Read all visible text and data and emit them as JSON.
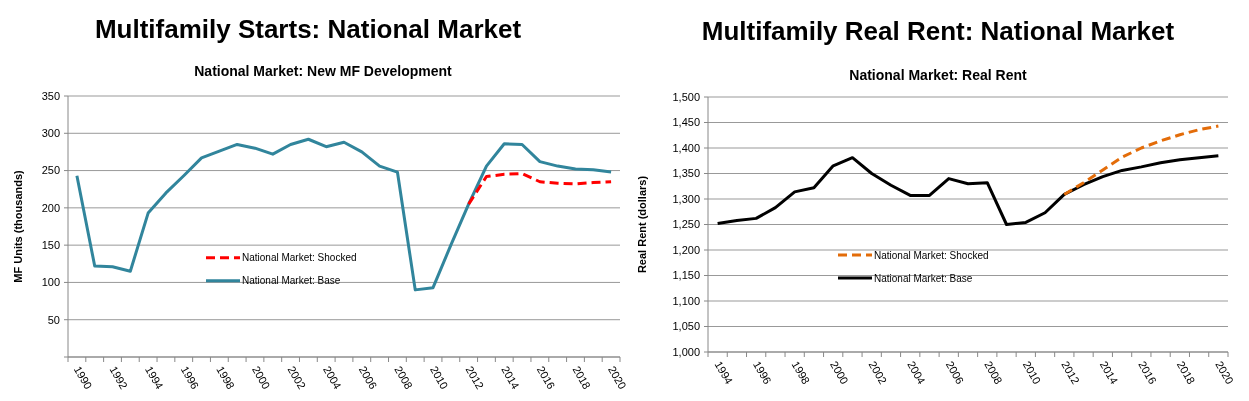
{
  "chart_data": [
    {
      "type": "line",
      "title": "Multifamily Starts: National Market",
      "subtitle": "National Market: New MF Development",
      "ylabel": "MF Units (thousands)",
      "categories": [
        "1990",
        null,
        "1992",
        null,
        "1994",
        null,
        "1996",
        null,
        "1998",
        null,
        "2000",
        null,
        "2002",
        null,
        "2004",
        null,
        "2006",
        null,
        "2008",
        null,
        "2010",
        null,
        "2012",
        null,
        "2014",
        null,
        "2016",
        null,
        "2018",
        null,
        "2020"
      ],
      "series": [
        {
          "name": "National Market: Shocked",
          "color": "#ff0000",
          "line_style": "dashed",
          "values": [
            null,
            null,
            null,
            null,
            null,
            null,
            null,
            null,
            null,
            null,
            null,
            null,
            null,
            null,
            null,
            null,
            null,
            null,
            null,
            null,
            null,
            null,
            205,
            242,
            245,
            246,
            235,
            233,
            232,
            234,
            235
          ]
        },
        {
          "name": "National Market: Base",
          "color": "#31859c",
          "line_style": "solid",
          "values": [
            243,
            122,
            121,
            115,
            193,
            220,
            243,
            267,
            276,
            285,
            280,
            272,
            285,
            292,
            282,
            288,
            275,
            256,
            248,
            90,
            93,
            150,
            205,
            256,
            286,
            285,
            262,
            256,
            252,
            251,
            248
          ]
        }
      ],
      "ylim": [
        0,
        350
      ],
      "yticks": [
        {
          "value": 0,
          "label": null
        },
        50,
        100,
        150,
        200,
        250,
        300,
        350
      ],
      "grid": "y",
      "legend": "bottom left",
      "marker": "none"
    },
    {
      "type": "line",
      "title": "Multifamily Real Rent: National Market",
      "subtitle": "National Market: Real Rent",
      "ylabel": "Real Rent (dollars)",
      "categories": [
        "1994",
        null,
        "1996",
        null,
        "1998",
        null,
        "2000",
        null,
        "2002",
        null,
        "2004",
        null,
        "2006",
        null,
        "2008",
        null,
        "2010",
        null,
        "2012",
        null,
        "2014",
        null,
        "2016",
        null,
        "2018",
        null,
        "2020"
      ],
      "series": [
        {
          "name": "National Market: Shocked",
          "color": "#e36c09",
          "line_style": "dashed",
          "values": [
            null,
            null,
            null,
            null,
            null,
            null,
            null,
            null,
            null,
            null,
            null,
            null,
            null,
            null,
            null,
            null,
            null,
            null,
            1309,
            1332,
            1357,
            1382,
            1400,
            1414,
            1426,
            1436,
            1443
          ]
        },
        {
          "name": "National Market: Base",
          "color": "#000000",
          "line_style": "solid",
          "values": [
            1252,
            1258,
            1262,
            1283,
            1314,
            1322,
            1365,
            1381,
            1350,
            1327,
            1307,
            1307,
            1340,
            1330,
            1332,
            1250,
            1254,
            1273,
            1309,
            1328,
            1344,
            1356,
            1363,
            1371,
            1377,
            1381,
            1385
          ]
        }
      ],
      "ylim": [
        1000,
        1500
      ],
      "yticks": [
        {
          "value": 1000,
          "label": "1,000"
        },
        {
          "value": 1050,
          "label": "1,050"
        },
        {
          "value": 1100,
          "label": "1,100"
        },
        {
          "value": 1150,
          "label": "1,150"
        },
        {
          "value": 1200,
          "label": "1,200"
        },
        {
          "value": 1250,
          "label": "1,250"
        },
        {
          "value": 1300,
          "label": "1,300"
        },
        {
          "value": 1350,
          "label": "1,350"
        },
        {
          "value": 1400,
          "label": "1,400"
        },
        {
          "value": 1450,
          "label": "1,450"
        },
        {
          "value": 1500,
          "label": "1,500"
        }
      ],
      "grid": "y",
      "legend": "bottom left",
      "marker": "none"
    }
  ]
}
